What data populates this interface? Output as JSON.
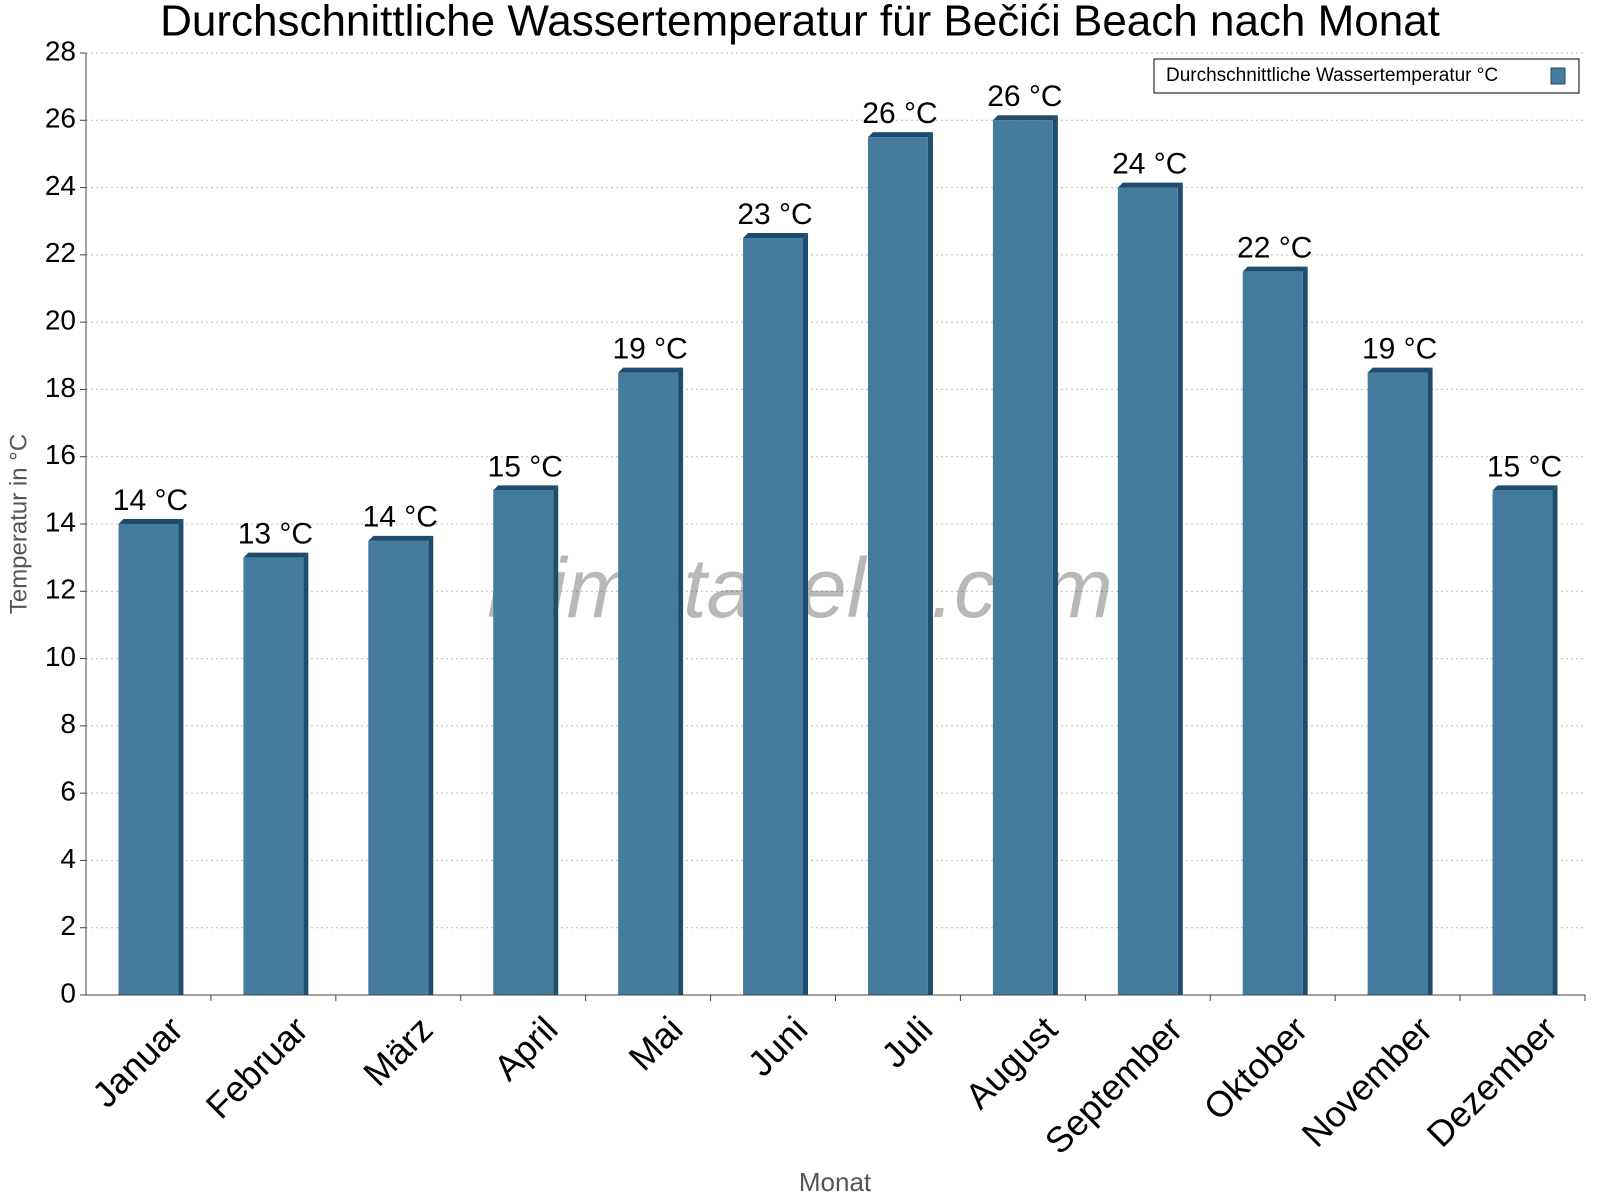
{
  "chart_data": {
    "type": "bar",
    "title": "Durchschnittliche Wassertemperatur für Bečići Beach nach Monat",
    "x_label": "Monat",
    "y_label": "Temperatur in °C",
    "watermark": "klimatabelle.com",
    "categories": [
      "Januar",
      "Februar",
      "März",
      "April",
      "Mai",
      "Juni",
      "Juli",
      "August",
      "September",
      "Oktober",
      "November",
      "Dezember"
    ],
    "series": [
      {
        "name": "Durchschnittliche Wassertemperatur °C",
        "color": "#457b9d",
        "values": [
          14,
          13,
          13.5,
          15,
          18.5,
          22.5,
          25.5,
          26,
          24,
          21.5,
          18.5,
          15
        ],
        "value_labels": [
          "14 °C",
          "13 °C",
          "14 °C",
          "15 °C",
          "19 °C",
          "23 °C",
          "26 °C",
          "26 °C",
          "24 °C",
          "22 °C",
          "19 °C",
          "15 °C"
        ]
      }
    ],
    "ylim": [
      0,
      28
    ],
    "yticks": [
      0,
      2,
      4,
      6,
      8,
      10,
      12,
      14,
      16,
      18,
      20,
      22,
      24,
      26,
      28
    ],
    "grid": true,
    "legend": "upper right"
  }
}
